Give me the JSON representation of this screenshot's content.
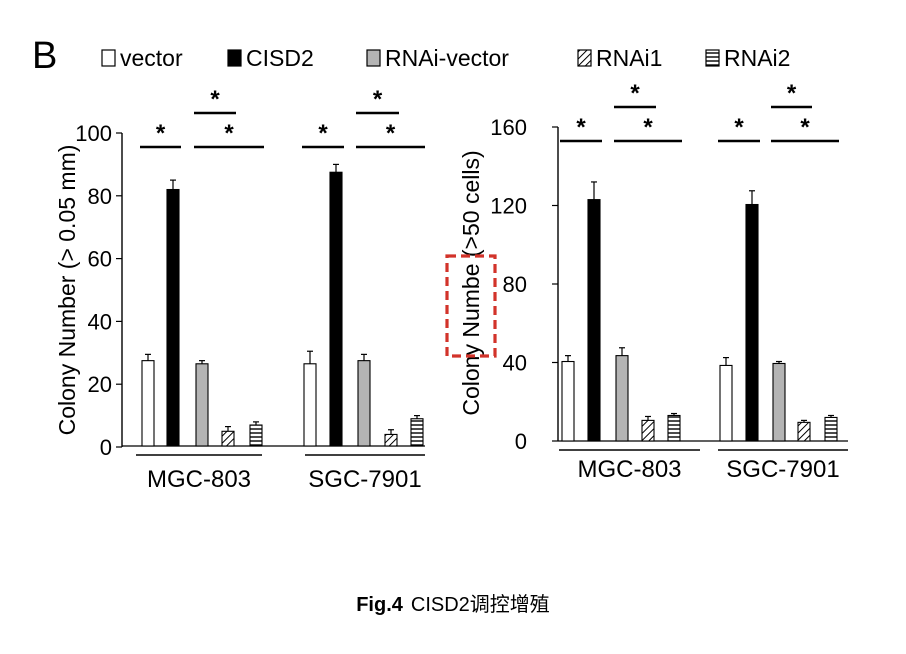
{
  "panel_label": "B",
  "legend": [
    {
      "label": "vector",
      "fill": "white"
    },
    {
      "label": "CISD2",
      "fill": "black"
    },
    {
      "label": "RNAi-vector",
      "fill": "gray"
    },
    {
      "label": "RNAi1",
      "fill": "diagonal-hatch"
    },
    {
      "label": "RNAi2",
      "fill": "horizontal-hatch"
    }
  ],
  "caption": {
    "label": "Fig.4",
    "text": "CISD2调控增殖"
  },
  "colors": {
    "bar_gray": "#b4b4b4",
    "highlight_box": "#d2332a",
    "axis": "#000000"
  },
  "chart_data": [
    {
      "type": "bar",
      "ylabel": "Colony Number (> 0.05 mm)",
      "ylim": [
        0,
        100
      ],
      "yticks": [
        "0",
        "20",
        "40",
        "60",
        "80",
        "100"
      ],
      "categories": [
        "MGC-803",
        "SGC-7901"
      ],
      "series": [
        {
          "name": "vector",
          "values": [
            27.5,
            26.5
          ],
          "errors": [
            2,
            4
          ]
        },
        {
          "name": "CISD2",
          "values": [
            82,
            87.5
          ],
          "errors": [
            3,
            2.5
          ]
        },
        {
          "name": "RNAi-vector",
          "values": [
            26.5,
            27.5
          ],
          "errors": [
            1,
            2
          ]
        },
        {
          "name": "RNAi1",
          "values": [
            5,
            4
          ],
          "errors": [
            1.5,
            1.5
          ]
        },
        {
          "name": "RNAi2",
          "values": [
            7,
            9
          ],
          "errors": [
            1,
            1
          ]
        }
      ],
      "significance": [
        {
          "label": "*",
          "group": 0,
          "from": 0,
          "to": 1,
          "level": 1
        },
        {
          "label": "*",
          "group": 0,
          "from": 2,
          "to": 4,
          "level": 1
        },
        {
          "label": "*",
          "group": 0,
          "from": 2,
          "to": 3,
          "level": 2
        },
        {
          "label": "*",
          "group": 1,
          "from": 0,
          "to": 1,
          "level": 1
        },
        {
          "label": "*",
          "group": 1,
          "from": 2,
          "to": 4,
          "level": 1
        },
        {
          "label": "*",
          "group": 1,
          "from": 2,
          "to": 3,
          "level": 2
        }
      ]
    },
    {
      "type": "bar",
      "ylabel": "Colony Numbe (>50 cells)",
      "ylim": [
        0,
        160
      ],
      "yticks": [
        "0",
        "40",
        "80",
        "120",
        "160"
      ],
      "categories": [
        "MGC-803",
        "SGC-7901"
      ],
      "series": [
        {
          "name": "vector",
          "values": [
            40.5,
            38.5
          ],
          "errors": [
            3,
            4
          ]
        },
        {
          "name": "CISD2",
          "values": [
            123,
            120.5
          ],
          "errors": [
            9,
            7
          ]
        },
        {
          "name": "RNAi-vector",
          "values": [
            43.5,
            39.5
          ],
          "errors": [
            4,
            1
          ]
        },
        {
          "name": "RNAi1",
          "values": [
            10.5,
            9.5
          ],
          "errors": [
            2,
            1
          ]
        },
        {
          "name": "RNAi2",
          "values": [
            13,
            12
          ],
          "errors": [
            1,
            1
          ]
        }
      ],
      "significance": [
        {
          "label": "*",
          "group": 0,
          "from": 0,
          "to": 1,
          "level": 1
        },
        {
          "label": "*",
          "group": 0,
          "from": 2,
          "to": 4,
          "level": 1
        },
        {
          "label": "*",
          "group": 0,
          "from": 2,
          "to": 3,
          "level": 2
        },
        {
          "label": "*",
          "group": 1,
          "from": 0,
          "to": 1,
          "level": 1
        },
        {
          "label": "*",
          "group": 1,
          "from": 2,
          "to": 4,
          "level": 1
        },
        {
          "label": "*",
          "group": 1,
          "from": 2,
          "to": 3,
          "level": 2
        }
      ],
      "highlighted_text": "Numbe"
    }
  ]
}
